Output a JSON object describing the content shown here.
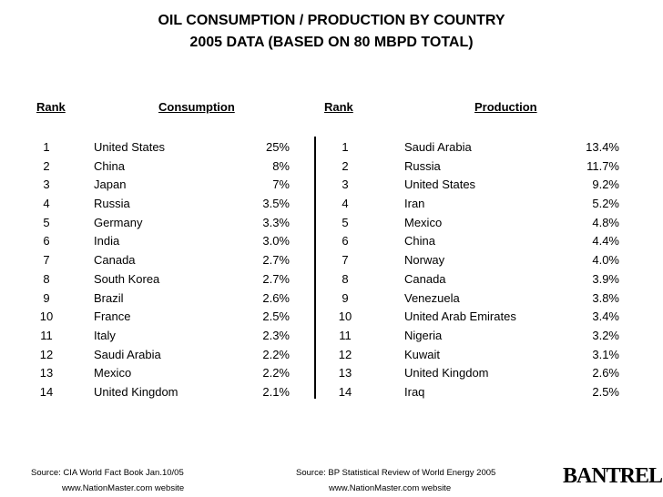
{
  "title": {
    "line1": "OIL CONSUMPTION / PRODUCTION BY COUNTRY",
    "line2": "2005 DATA (BASED ON 80 MBPD TOTAL)"
  },
  "consumption": {
    "rank_header": "Rank",
    "header": "Consumption",
    "rows": [
      {
        "rank": "1",
        "country": "United States",
        "value": "25%"
      },
      {
        "rank": "2",
        "country": "China",
        "value": "8%"
      },
      {
        "rank": "3",
        "country": "Japan",
        "value": "7%"
      },
      {
        "rank": "4",
        "country": "Russia",
        "value": "3.5%"
      },
      {
        "rank": "5",
        "country": "Germany",
        "value": "3.3%"
      },
      {
        "rank": "6",
        "country": "India",
        "value": "3.0%"
      },
      {
        "rank": "7",
        "country": "Canada",
        "value": "2.7%"
      },
      {
        "rank": "8",
        "country": "South Korea",
        "value": "2.7%"
      },
      {
        "rank": "9",
        "country": "Brazil",
        "value": "2.6%"
      },
      {
        "rank": "10",
        "country": "France",
        "value": "2.5%"
      },
      {
        "rank": "11",
        "country": "Italy",
        "value": "2.3%"
      },
      {
        "rank": "12",
        "country": "Saudi Arabia",
        "value": "2.2%"
      },
      {
        "rank": "13",
        "country": "Mexico",
        "value": "2.2%"
      },
      {
        "rank": "14",
        "country": "United Kingdom",
        "value": "2.1%"
      }
    ]
  },
  "production": {
    "rank_header": "Rank",
    "header": "Production",
    "rows": [
      {
        "rank": "1",
        "country": "Saudi Arabia",
        "value": "13.4%"
      },
      {
        "rank": "2",
        "country": "Russia",
        "value": "11.7%"
      },
      {
        "rank": "3",
        "country": "United States",
        "value": "9.2%"
      },
      {
        "rank": "4",
        "country": "Iran",
        "value": "5.2%"
      },
      {
        "rank": "5",
        "country": "Mexico",
        "value": "4.8%"
      },
      {
        "rank": "6",
        "country": "China",
        "value": "4.4%"
      },
      {
        "rank": "7",
        "country": "Norway",
        "value": "4.0%"
      },
      {
        "rank": "8",
        "country": "Canada",
        "value": "3.9%"
      },
      {
        "rank": "9",
        "country": "Venezuela",
        "value": "3.8%"
      },
      {
        "rank": "10",
        "country": "United Arab Emirates",
        "value": "3.4%"
      },
      {
        "rank": "11",
        "country": "Nigeria",
        "value": "3.2%"
      },
      {
        "rank": "12",
        "country": "Kuwait",
        "value": "3.1%"
      },
      {
        "rank": "13",
        "country": "United Kingdom",
        "value": "2.6%"
      },
      {
        "rank": "14",
        "country": "Iraq",
        "value": "2.5%"
      }
    ]
  },
  "sources": {
    "left_line1": "Source: CIA World Fact Book Jan.10/05",
    "left_line2": "www.NationMaster.com website",
    "right_line1": "Source: BP Statistical Review of World Energy 2005",
    "right_line2": "www.NationMaster.com website"
  },
  "logo": "BANTREL"
}
